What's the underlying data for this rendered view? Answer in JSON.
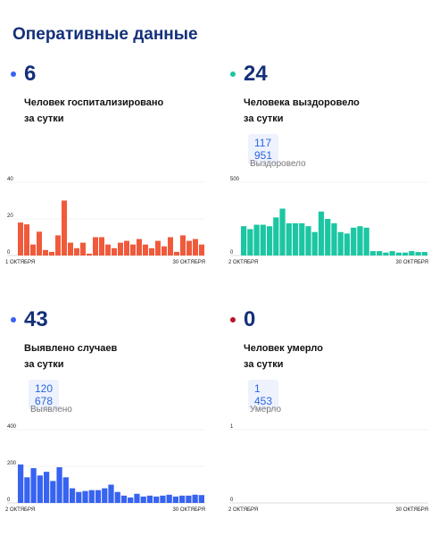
{
  "title": "Оперативные данные",
  "stats": {
    "hospitalized": {
      "value": "6",
      "line1": "Человек госпитализировано",
      "line2": "за сутки",
      "color": "#e8533d"
    },
    "recovered": {
      "value": "24",
      "line1": "Человека выздоровело",
      "line2": "за сутки",
      "total": "117 951",
      "total_label": "Выздоровело",
      "color": "#1cc6a3"
    },
    "detected": {
      "value": "43",
      "line1": "Выявлено случаев",
      "line2": "за сутки",
      "total": "120 678",
      "total_label": "Выявлено",
      "color": "#3763f1"
    },
    "died": {
      "value": "0",
      "line1": "Человек умерло",
      "line2": "за сутки",
      "total": "1 453",
      "total_label": "Умерло",
      "color": "#b81226"
    }
  },
  "chart_data": [
    {
      "type": "bar",
      "color": "#f05a3b",
      "yticks": [
        0,
        20,
        40
      ],
      "ylim": [
        0,
        40
      ],
      "x_start_label": "1 ОКТЯБРЯ",
      "x_end_label": "30 ОКТЯБРЯ",
      "values": [
        18,
        17,
        6,
        13,
        3,
        2,
        11,
        30,
        7,
        4,
        7,
        1,
        10,
        10,
        6,
        4,
        7,
        8,
        6,
        9,
        6,
        4,
        8,
        5,
        10,
        2,
        11,
        8,
        9,
        6
      ]
    },
    {
      "type": "bar",
      "color": "#1cc6a3",
      "yticks": [
        0,
        500
      ],
      "ylim": [
        0,
        500
      ],
      "x_start_label": "2 ОКТЯБРЯ",
      "x_end_label": "30 ОКТЯБРЯ",
      "values": [
        200,
        180,
        210,
        210,
        200,
        260,
        320,
        220,
        220,
        220,
        200,
        160,
        300,
        250,
        220,
        160,
        150,
        190,
        200,
        190,
        30,
        30,
        20,
        30,
        20,
        20,
        30,
        24,
        24
      ]
    },
    {
      "type": "bar",
      "color": "#3763f1",
      "yticks": [
        0,
        200,
        400
      ],
      "ylim": [
        0,
        400
      ],
      "x_start_label": "2 ОКТЯБРЯ",
      "x_end_label": "30 ОКТЯБРЯ",
      "values": [
        210,
        140,
        190,
        150,
        170,
        120,
        195,
        140,
        80,
        60,
        65,
        70,
        70,
        80,
        100,
        60,
        40,
        30,
        50,
        35,
        40,
        35,
        40,
        45,
        35,
        40,
        40,
        45,
        43
      ]
    },
    {
      "type": "bar",
      "color": "#b81226",
      "yticks": [
        0,
        1
      ],
      "ylim": [
        0,
        1
      ],
      "x_start_label": "2 ОКТЯБРЯ",
      "x_end_label": "30 ОКТЯБРЯ",
      "values": [
        0,
        0,
        0,
        0,
        0,
        0,
        0,
        0,
        0,
        0,
        0,
        0,
        0,
        0,
        0,
        0,
        0,
        0,
        0,
        0,
        0,
        0,
        0,
        0,
        0,
        0,
        0,
        0,
        0
      ]
    }
  ]
}
